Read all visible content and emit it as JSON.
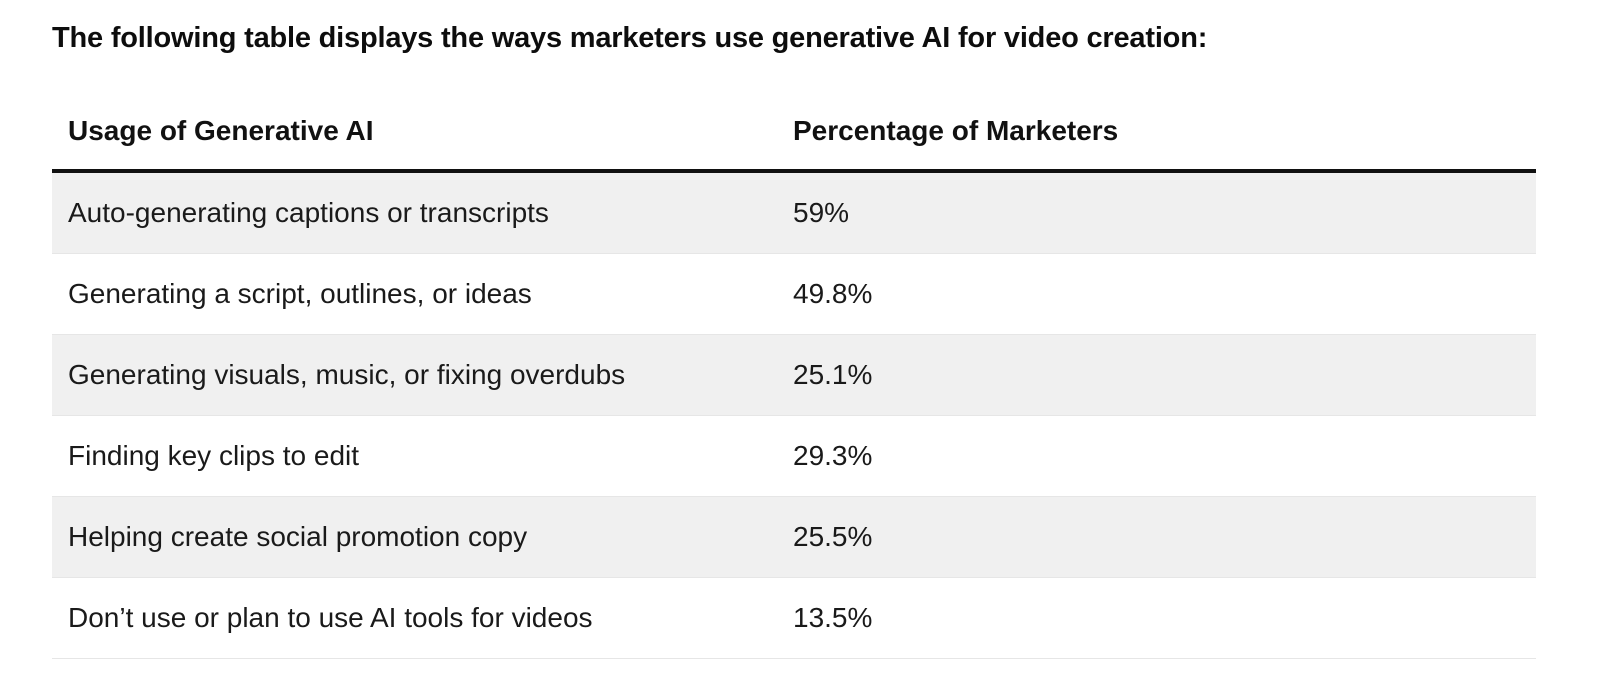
{
  "intro": "The following table displays the ways marketers use generative AI for video creation:",
  "table": {
    "headers": [
      "Usage of Generative AI",
      "Percentage of Marketers"
    ],
    "rows": [
      [
        "Auto-generating captions or transcripts",
        "59%"
      ],
      [
        "Generating a script, outlines, or ideas",
        "49.8%"
      ],
      [
        "Generating visuals, music, or fixing overdubs",
        "25.1%"
      ],
      [
        "Finding key clips to edit",
        "29.3%"
      ],
      [
        "Helping create social promotion copy",
        "25.5%"
      ],
      [
        "Don’t use or plan to use AI tools for videos",
        "13.5%"
      ]
    ]
  },
  "colors": {
    "text": "#111111",
    "row_shade": "#f0f0f0",
    "header_rule": "#111111"
  }
}
